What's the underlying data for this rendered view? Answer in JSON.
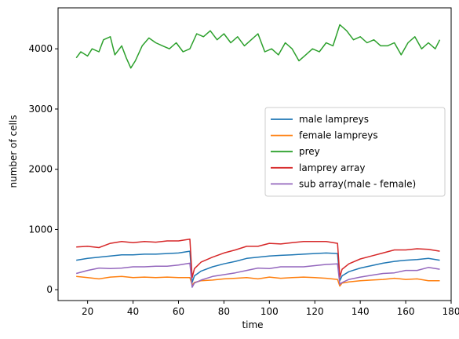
{
  "chart_data": {
    "type": "line",
    "title": "",
    "xlabel": "time",
    "ylabel": "number of cells",
    "xlim": [
      7,
      180
    ],
    "ylim": [
      -180,
      4680
    ],
    "xticks": [
      20,
      40,
      60,
      80,
      100,
      120,
      140,
      160,
      180
    ],
    "yticks": [
      0,
      1000,
      2000,
      3000,
      4000
    ],
    "grid": false,
    "legend_position": "center-right",
    "series": [
      {
        "name": "male lampreys",
        "color": "#1f77b4",
        "x": [
          15,
          20,
          25,
          30,
          35,
          40,
          45,
          50,
          55,
          60,
          65,
          66,
          67,
          70,
          75,
          80,
          85,
          90,
          95,
          100,
          105,
          110,
          115,
          120,
          125,
          130,
          131,
          132,
          135,
          140,
          145,
          150,
          155,
          160,
          165,
          170,
          175
        ],
        "y": [
          490,
          520,
          540,
          560,
          580,
          580,
          590,
          590,
          600,
          610,
          640,
          120,
          230,
          310,
          380,
          430,
          470,
          520,
          540,
          560,
          570,
          580,
          590,
          600,
          610,
          600,
          150,
          230,
          300,
          360,
          400,
          440,
          470,
          490,
          500,
          520,
          490
        ]
      },
      {
        "name": "female lampreys",
        "color": "#ff7f0e",
        "x": [
          15,
          20,
          25,
          30,
          35,
          40,
          45,
          50,
          55,
          60,
          65,
          66,
          67,
          70,
          75,
          80,
          85,
          90,
          95,
          100,
          105,
          110,
          115,
          120,
          125,
          130,
          131,
          132,
          135,
          140,
          145,
          150,
          155,
          160,
          165,
          170,
          175
        ],
        "y": [
          220,
          200,
          180,
          210,
          220,
          200,
          210,
          200,
          210,
          200,
          200,
          80,
          120,
          150,
          160,
          180,
          190,
          200,
          180,
          210,
          190,
          200,
          210,
          200,
          190,
          170,
          60,
          110,
          130,
          150,
          160,
          170,
          190,
          170,
          180,
          150,
          150
        ]
      },
      {
        "name": "prey",
        "color": "#2ca02c",
        "x": [
          15,
          17,
          20,
          22,
          25,
          27,
          30,
          32,
          35,
          37,
          39,
          41,
          44,
          47,
          50,
          53,
          56,
          59,
          62,
          65,
          68,
          71,
          74,
          77,
          80,
          83,
          86,
          89,
          92,
          95,
          98,
          101,
          104,
          107,
          110,
          113,
          116,
          119,
          122,
          125,
          128,
          131,
          134,
          137,
          140,
          143,
          146,
          149,
          152,
          155,
          158,
          161,
          164,
          167,
          170,
          173,
          175
        ],
        "y": [
          3850,
          3950,
          3880,
          4000,
          3950,
          4150,
          4200,
          3900,
          4050,
          3850,
          3680,
          3800,
          4050,
          4180,
          4100,
          4050,
          4000,
          4100,
          3950,
          4000,
          4250,
          4200,
          4300,
          4150,
          4250,
          4100,
          4200,
          4050,
          4150,
          4250,
          3950,
          4000,
          3900,
          4100,
          4000,
          3800,
          3900,
          4000,
          3950,
          4100,
          4050,
          4400,
          4300,
          4150,
          4200,
          4100,
          4150,
          4050,
          4050,
          4100,
          3900,
          4100,
          4200,
          4000,
          4100,
          4000,
          4150
        ]
      },
      {
        "name": "lamprey array",
        "color": "#d62728",
        "x": [
          15,
          20,
          25,
          30,
          35,
          40,
          45,
          50,
          55,
          60,
          65,
          66,
          67,
          70,
          75,
          80,
          85,
          90,
          95,
          100,
          105,
          110,
          115,
          120,
          125,
          130,
          131,
          132,
          135,
          140,
          145,
          150,
          155,
          160,
          165,
          170,
          175
        ],
        "y": [
          710,
          720,
          700,
          770,
          800,
          780,
          800,
          790,
          810,
          810,
          840,
          200,
          350,
          460,
          540,
          610,
          660,
          720,
          720,
          770,
          760,
          780,
          800,
          800,
          800,
          770,
          210,
          340,
          430,
          510,
          560,
          610,
          660,
          660,
          680,
          670,
          640
        ]
      },
      {
        "name": "sub array(male - female)",
        "color": "#9467bd",
        "x": [
          15,
          20,
          25,
          30,
          35,
          40,
          45,
          50,
          55,
          60,
          65,
          66,
          67,
          70,
          75,
          80,
          85,
          90,
          95,
          100,
          105,
          110,
          115,
          120,
          125,
          130,
          131,
          132,
          135,
          140,
          145,
          150,
          155,
          160,
          165,
          170,
          175
        ],
        "y": [
          270,
          320,
          360,
          350,
          360,
          380,
          380,
          390,
          390,
          410,
          440,
          40,
          110,
          160,
          220,
          250,
          280,
          320,
          360,
          350,
          380,
          380,
          380,
          400,
          420,
          430,
          90,
          120,
          170,
          210,
          240,
          270,
          280,
          320,
          320,
          370,
          340
        ]
      }
    ]
  }
}
